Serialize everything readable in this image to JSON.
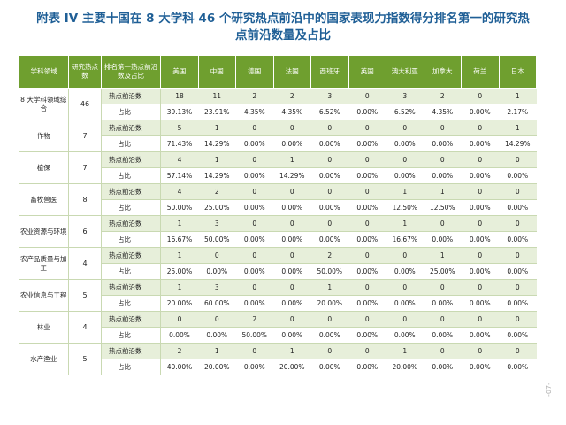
{
  "title": {
    "line1": "附表 IV 主要十国在 8 大学科 46 个研究热点前沿中的国家表现力指数得分排名第一的研究热",
    "line2": "点前沿数量及占比"
  },
  "table": {
    "headers": {
      "field": "学科领域",
      "total": "研究热点数",
      "metric": "排名第一热点前沿数及占比",
      "countries": [
        "美国",
        "中国",
        "德国",
        "法国",
        "西班牙",
        "英国",
        "澳大利亚",
        "加拿大",
        "荷兰",
        "日本"
      ]
    },
    "count_label": "热点前沿数",
    "pct_label": "占比",
    "groups": [
      {
        "field": "8 大学科领域综合",
        "total": "46",
        "counts": [
          "18",
          "11",
          "2",
          "2",
          "3",
          "0",
          "3",
          "2",
          "0",
          "1"
        ],
        "pcts": [
          "39.13%",
          "23.91%",
          "4.35%",
          "4.35%",
          "6.52%",
          "0.00%",
          "6.52%",
          "4.35%",
          "0.00%",
          "2.17%"
        ]
      },
      {
        "field": "作物",
        "total": "7",
        "counts": [
          "5",
          "1",
          "0",
          "0",
          "0",
          "0",
          "0",
          "0",
          "0",
          "1"
        ],
        "pcts": [
          "71.43%",
          "14.29%",
          "0.00%",
          "0.00%",
          "0.00%",
          "0.00%",
          "0.00%",
          "0.00%",
          "0.00%",
          "14.29%"
        ]
      },
      {
        "field": "植保",
        "total": "7",
        "counts": [
          "4",
          "1",
          "0",
          "1",
          "0",
          "0",
          "0",
          "0",
          "0",
          "0"
        ],
        "pcts": [
          "57.14%",
          "14.29%",
          "0.00%",
          "14.29%",
          "0.00%",
          "0.00%",
          "0.00%",
          "0.00%",
          "0.00%",
          "0.00%"
        ]
      },
      {
        "field": "畜牧兽医",
        "total": "8",
        "counts": [
          "4",
          "2",
          "0",
          "0",
          "0",
          "0",
          "1",
          "1",
          "0",
          "0"
        ],
        "pcts": [
          "50.00%",
          "25.00%",
          "0.00%",
          "0.00%",
          "0.00%",
          "0.00%",
          "12.50%",
          "12.50%",
          "0.00%",
          "0.00%"
        ]
      },
      {
        "field": "农业资源与环境",
        "total": "6",
        "counts": [
          "1",
          "3",
          "0",
          "0",
          "0",
          "0",
          "1",
          "0",
          "0",
          "0"
        ],
        "pcts": [
          "16.67%",
          "50.00%",
          "0.00%",
          "0.00%",
          "0.00%",
          "0.00%",
          "16.67%",
          "0.00%",
          "0.00%",
          "0.00%"
        ]
      },
      {
        "field": "农产品质量与加工",
        "total": "4",
        "counts": [
          "1",
          "0",
          "0",
          "0",
          "2",
          "0",
          "0",
          "1",
          "0",
          "0"
        ],
        "pcts": [
          "25.00%",
          "0.00%",
          "0.00%",
          "0.00%",
          "50.00%",
          "0.00%",
          "0.00%",
          "25.00%",
          "0.00%",
          "0.00%"
        ]
      },
      {
        "field": "农业信息与工程",
        "total": "5",
        "counts": [
          "1",
          "3",
          "0",
          "0",
          "1",
          "0",
          "0",
          "0",
          "0",
          "0"
        ],
        "pcts": [
          "20.00%",
          "60.00%",
          "0.00%",
          "0.00%",
          "20.00%",
          "0.00%",
          "0.00%",
          "0.00%",
          "0.00%",
          "0.00%"
        ]
      },
      {
        "field": "林业",
        "total": "4",
        "counts": [
          "0",
          "0",
          "2",
          "0",
          "0",
          "0",
          "0",
          "0",
          "0",
          "0"
        ],
        "pcts": [
          "0.00%",
          "0.00%",
          "50.00%",
          "0.00%",
          "0.00%",
          "0.00%",
          "0.00%",
          "0.00%",
          "0.00%",
          "0.00%"
        ]
      },
      {
        "field": "水产渔业",
        "total": "5",
        "counts": [
          "2",
          "1",
          "0",
          "1",
          "0",
          "0",
          "1",
          "0",
          "0",
          "0"
        ],
        "pcts": [
          "40.00%",
          "20.00%",
          "0.00%",
          "20.00%",
          "0.00%",
          "0.00%",
          "20.00%",
          "0.00%",
          "0.00%",
          "0.00%"
        ]
      }
    ]
  },
  "page_number": "-07-"
}
